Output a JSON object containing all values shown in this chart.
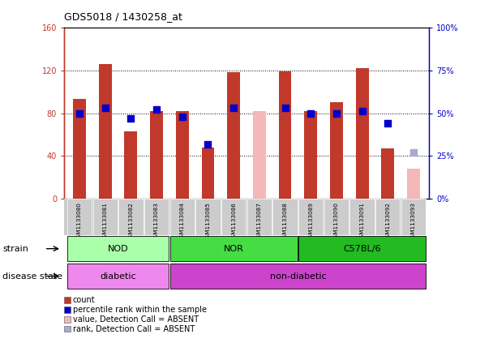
{
  "title": "GDS5018 / 1430258_at",
  "samples": [
    "GSM1133080",
    "GSM1133081",
    "GSM1133082",
    "GSM1133083",
    "GSM1133084",
    "GSM1133085",
    "GSM1133086",
    "GSM1133087",
    "GSM1133088",
    "GSM1133089",
    "GSM1133090",
    "GSM1133091",
    "GSM1133092",
    "GSM1133093"
  ],
  "count_values": [
    93,
    126,
    63,
    82,
    82,
    48,
    118,
    null,
    119,
    82,
    90,
    122,
    47,
    null
  ],
  "count_absent": [
    null,
    null,
    null,
    null,
    null,
    null,
    null,
    82,
    null,
    null,
    null,
    null,
    null,
    28
  ],
  "rank_values": [
    50,
    53,
    47,
    52,
    48,
    32,
    53,
    null,
    53,
    50,
    50,
    51,
    44,
    null
  ],
  "rank_absent": [
    null,
    null,
    null,
    null,
    null,
    null,
    null,
    null,
    null,
    null,
    null,
    null,
    null,
    27
  ],
  "ylim_left": [
    0,
    160
  ],
  "ylim_right": [
    0,
    100
  ],
  "yticks_left": [
    0,
    40,
    80,
    120,
    160
  ],
  "yticks_right": [
    0,
    25,
    50,
    75,
    100
  ],
  "ytick_labels_left": [
    "0",
    "40",
    "80",
    "120",
    "160"
  ],
  "ytick_labels_right": [
    "0%",
    "25%",
    "50%",
    "75%",
    "100%"
  ],
  "bar_width": 0.5,
  "bar_color_red": "#c0392b",
  "bar_color_pink": "#f4b8b8",
  "dot_color_blue": "#0000cc",
  "dot_color_lightblue": "#aaaacc",
  "dot_size": 30,
  "strain_data": [
    {
      "label": "NOD",
      "start": 0,
      "end": 3,
      "color": "#aaffaa"
    },
    {
      "label": "NOR",
      "start": 4,
      "end": 8,
      "color": "#44dd44"
    },
    {
      "label": "C57BL/6",
      "start": 9,
      "end": 13,
      "color": "#22bb22"
    }
  ],
  "disease_data": [
    {
      "label": "diabetic",
      "start": 0,
      "end": 3,
      "color": "#ee88ee"
    },
    {
      "label": "non-diabetic",
      "start": 4,
      "end": 13,
      "color": "#cc44cc"
    }
  ],
  "strain_label": "strain",
  "disease_label": "disease state",
  "legend_items": [
    {
      "label": "count",
      "color": "#c0392b"
    },
    {
      "label": "percentile rank within the sample",
      "color": "#0000cc"
    },
    {
      "label": "value, Detection Call = ABSENT",
      "color": "#f4b8b8"
    },
    {
      "label": "rank, Detection Call = ABSENT",
      "color": "#aaaacc"
    }
  ],
  "grid_yticks": [
    40,
    80,
    120
  ],
  "tick_bg_color": "#cccccc"
}
